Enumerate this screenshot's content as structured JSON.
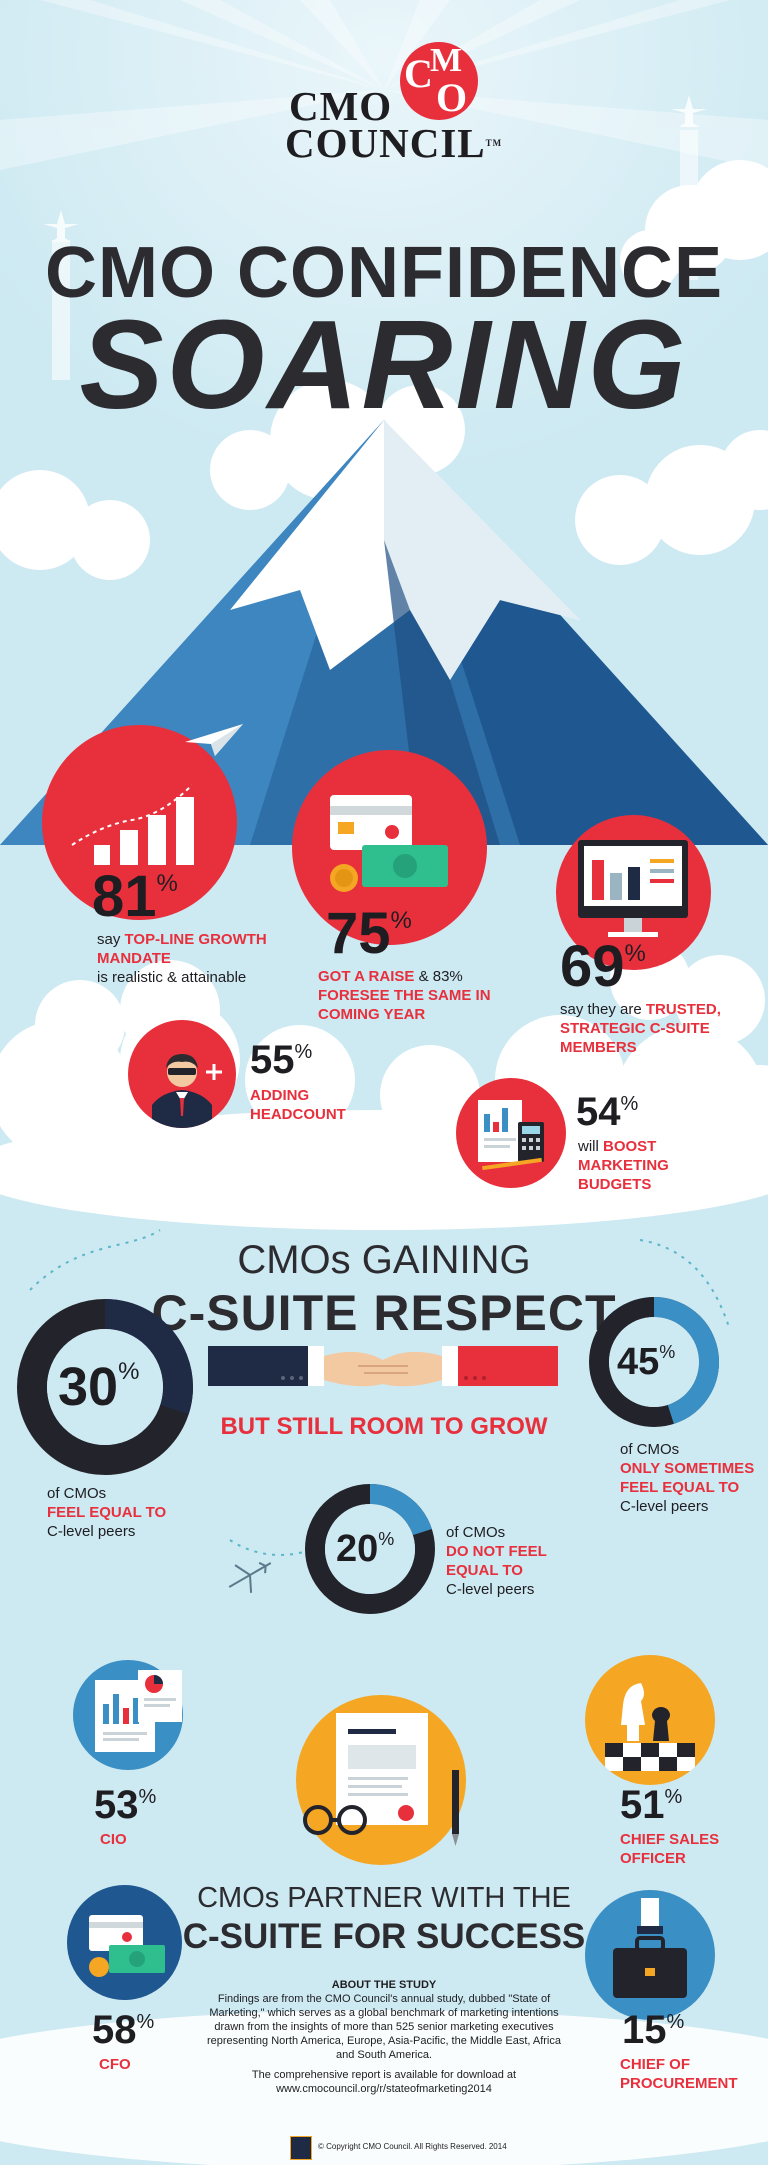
{
  "logo": {
    "line1": "CMO",
    "line2": "COUNCIL",
    "tm": "TM",
    "badge_letters": [
      "C",
      "M",
      "O"
    ]
  },
  "title": {
    "line1": "CMO CONFIDENCE",
    "line2": "SOARING"
  },
  "stats_top": [
    {
      "value": "81",
      "pct": "%",
      "pre": "say ",
      "highlight": "TOP-LINE GROWTH MANDATE",
      "post": "is realistic & attainable"
    },
    {
      "value": "75",
      "pct": "%",
      "highlight1": "GOT A RAISE",
      "mid": " & 83% ",
      "highlight2": "FORESEE THE SAME IN COMING YEAR"
    },
    {
      "value": "69",
      "pct": "%",
      "pre": "say they are ",
      "highlight": "TRUSTED, STRATEGIC C-SUITE MEMBERS"
    },
    {
      "value": "55",
      "pct": "%",
      "highlight": "ADDING HEADCOUNT"
    },
    {
      "value": "54",
      "pct": "%",
      "pre": "will ",
      "highlight": "BOOST MARKETING BUDGETS"
    }
  ],
  "respect": {
    "heading1": "CMOs GAINING",
    "heading2": "C-SUITE RESPECT",
    "subtitle": "BUT STILL ROOM TO GROW",
    "donuts": [
      {
        "value": "30",
        "pct": "%",
        "fraction": 0.3,
        "pre": "of CMOs",
        "highlight": "FEEL EQUAL TO",
        "post": "C-level peers"
      },
      {
        "value": "45",
        "pct": "%",
        "fraction": 0.45,
        "pre": "of CMOs",
        "highlight": "ONLY SOMETIMES FEEL EQUAL TO",
        "post": "C-level peers"
      },
      {
        "value": "20",
        "pct": "%",
        "fraction": 0.2,
        "pre": "of CMOs",
        "highlight": "DO NOT FEEL EQUAL TO",
        "post": "C-level peers"
      }
    ]
  },
  "partners": {
    "heading1": "CMOs PARTNER WITH THE",
    "heading2": "C-SUITE FOR SUCCESS",
    "items": [
      {
        "value": "53",
        "pct": "%",
        "label": "CIO"
      },
      {
        "value": "51",
        "pct": "%",
        "label": "CHIEF SALES OFFICER"
      },
      {
        "value": "58",
        "pct": "%",
        "label": "CFO"
      },
      {
        "value": "15",
        "pct": "%",
        "label": "CHIEF OF PROCUREMENT"
      }
    ]
  },
  "about": {
    "heading": "ABOUT THE STUDY",
    "body": "Findings are from the CMO Council's annual study, dubbed \"State of Marketing,\" which serves as a global benchmark of marketing intentions drawn from the insights of more than 525 senior marketing executives representing North America, Europe, Asia-Pacific, the Middle East, Africa and South America.",
    "report": "The comprehensive report is available for download at",
    "url": "www.cmocouncil.org/r/stateofmarketing2014",
    "copyright": "© Copyright CMO Council. All Rights Reserved. 2014"
  },
  "colors": {
    "red": "#e8303d",
    "navy": "#1f2a44",
    "sky": "#cde9f2",
    "mountain": "#2f6fa8",
    "donut_blue": "#3a8fc4",
    "yellow": "#f5a623"
  }
}
